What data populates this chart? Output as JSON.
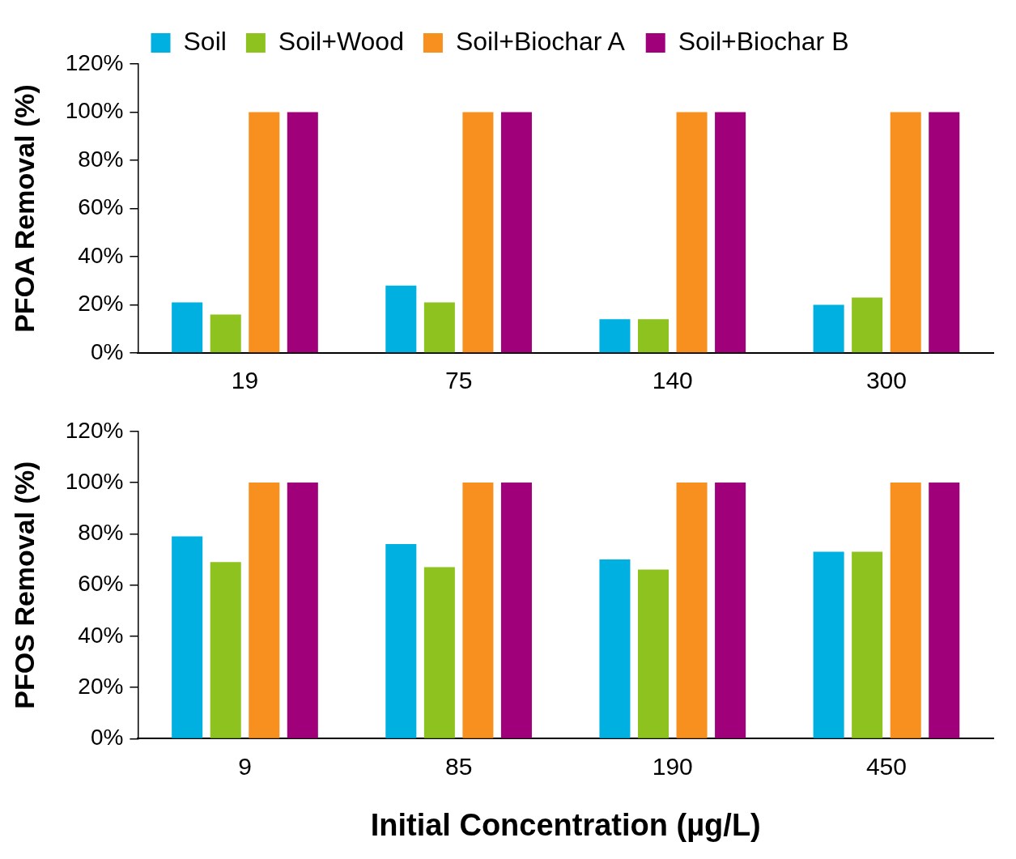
{
  "chart_data": [
    {
      "type": "bar",
      "ylabel": "PFOA Removal (%)",
      "categories": [
        "19",
        "75",
        "140",
        "300"
      ],
      "legend": "top",
      "grid": false,
      "ylim": [
        0,
        120
      ],
      "yticks": [
        {
          "value": 0,
          "label": "0%"
        },
        {
          "value": 20,
          "label": "20%"
        },
        {
          "value": 40,
          "label": "40%"
        },
        {
          "value": 60,
          "label": "60%"
        },
        {
          "value": 80,
          "label": "80%"
        },
        {
          "value": 100,
          "label": "100%"
        },
        {
          "value": 120,
          "label": "120%"
        }
      ],
      "series": [
        {
          "name": "Soil",
          "color": "#00b0e0",
          "values": [
            21,
            28,
            14,
            20
          ]
        },
        {
          "name": "Soil+Wood",
          "color": "#8dc21f",
          "values": [
            16,
            21,
            14,
            23
          ]
        },
        {
          "name": "Soil+Biochar A",
          "color": "#f7901e",
          "values": [
            100,
            100,
            100,
            100
          ]
        },
        {
          "name": "Soil+Biochar B",
          "color": "#a0007a",
          "values": [
            100,
            100,
            100,
            100
          ]
        }
      ]
    },
    {
      "type": "bar",
      "ylabel": "PFOS Removal (%)",
      "xlabel": "Initial Concentration (µg/L)",
      "categories": [
        "9",
        "85",
        "190",
        "450"
      ],
      "grid": false,
      "ylim": [
        0,
        120
      ],
      "yticks": [
        {
          "value": 0,
          "label": "0%"
        },
        {
          "value": 20,
          "label": "20%"
        },
        {
          "value": 40,
          "label": "40%"
        },
        {
          "value": 60,
          "label": "60%"
        },
        {
          "value": 80,
          "label": "80%"
        },
        {
          "value": 100,
          "label": "100%"
        },
        {
          "value": 120,
          "label": "120%"
        }
      ],
      "series": [
        {
          "color": "#00b0e0",
          "values": [
            79,
            76,
            70,
            73
          ]
        },
        {
          "color": "#8dc21f",
          "values": [
            69,
            67,
            66,
            73
          ]
        },
        {
          "color": "#f7901e",
          "values": [
            100,
            100,
            100,
            100
          ]
        },
        {
          "color": "#a0007a",
          "values": [
            100,
            100,
            100,
            100
          ]
        }
      ]
    }
  ]
}
